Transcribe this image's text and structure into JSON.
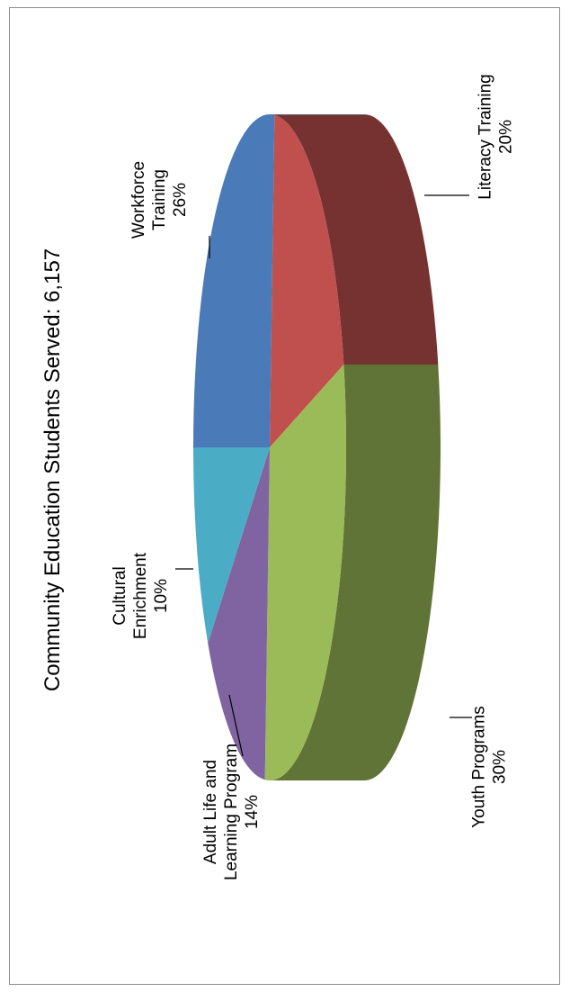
{
  "chart_data": {
    "type": "pie",
    "title": "Community Education Students Served:  6,157",
    "slices": [
      {
        "label_lines": [
          "Workforce",
          "Training"
        ],
        "pct_text": "26%",
        "value": 26,
        "color": "#4a7ab8"
      },
      {
        "label_lines": [
          "Literacy Training"
        ],
        "pct_text": "20%",
        "value": 20,
        "color": "#bf504d"
      },
      {
        "label_lines": [
          "Youth Programs"
        ],
        "pct_text": "30%",
        "value": 30,
        "color": "#9bbb59"
      },
      {
        "label_lines": [
          "Adult Life and",
          "Learning Program"
        ],
        "pct_text": "14%",
        "value": 14,
        "color": "#8064a2"
      },
      {
        "label_lines": [
          "Cultural",
          "Enrichment"
        ],
        "pct_text": "10%",
        "value": 10,
        "color": "#4bacc6"
      }
    ],
    "legend": "none",
    "orientation": "rotated-90-ccw",
    "style": "3d-pie"
  }
}
